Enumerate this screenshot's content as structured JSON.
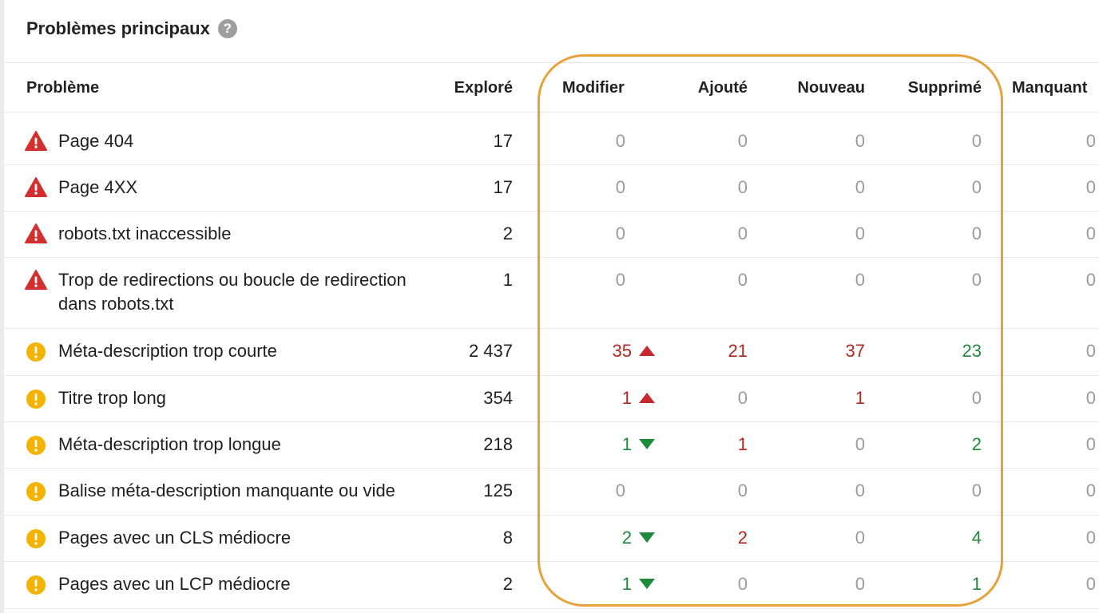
{
  "panel": {
    "title": "Problèmes principaux",
    "help_icon": "question-circle-icon"
  },
  "columns": {
    "probleme": "Problème",
    "explore": "Exploré",
    "modifier": "Modifier",
    "ajoute": "Ajouté",
    "nouveau": "Nouveau",
    "supprime": "Supprimé",
    "manquant": "Manquant"
  },
  "colors": {
    "error": "#d32f2f",
    "warning": "#f5b301",
    "increase": "#b3261e",
    "decrease": "#1e8a3a",
    "highlight": "#e8a23c"
  },
  "rows": [
    {
      "severity": "error",
      "icon": "warning-triangle-icon",
      "label": "Page 404",
      "explore": "17",
      "modifier": "0",
      "modifier_trend": "",
      "ajoute": "0",
      "nouveau": "0",
      "supprime": "0",
      "manquant": "0"
    },
    {
      "severity": "error",
      "icon": "warning-triangle-icon",
      "label": "Page 4XX",
      "explore": "17",
      "modifier": "0",
      "modifier_trend": "",
      "ajoute": "0",
      "nouveau": "0",
      "supprime": "0",
      "manquant": "0"
    },
    {
      "severity": "error",
      "icon": "warning-triangle-icon",
      "label": "robots.txt inaccessible",
      "explore": "2",
      "modifier": "0",
      "modifier_trend": "",
      "ajoute": "0",
      "nouveau": "0",
      "supprime": "0",
      "manquant": "0"
    },
    {
      "severity": "error",
      "icon": "warning-triangle-icon",
      "label": "Trop de redirections ou boucle de redirection",
      "label_line2": "dans robots.txt",
      "explore": "1",
      "modifier": "0",
      "modifier_trend": "",
      "ajoute": "0",
      "nouveau": "0",
      "supprime": "0",
      "manquant": "0"
    },
    {
      "severity": "warning",
      "icon": "info-circle-icon",
      "label": "Méta-description trop courte",
      "explore": "2 437",
      "modifier": "35",
      "modifier_trend": "up",
      "ajoute": "21",
      "nouveau": "37",
      "supprime": "23",
      "manquant": "0"
    },
    {
      "severity": "warning",
      "icon": "info-circle-icon",
      "label": "Titre trop long",
      "explore": "354",
      "modifier": "1",
      "modifier_trend": "up",
      "ajoute": "0",
      "nouveau": "1",
      "supprime": "0",
      "manquant": "0"
    },
    {
      "severity": "warning",
      "icon": "info-circle-icon",
      "label": "Méta-description trop longue",
      "explore": "218",
      "modifier": "1",
      "modifier_trend": "down",
      "ajoute": "1",
      "nouveau": "0",
      "supprime": "2",
      "manquant": "0"
    },
    {
      "severity": "warning",
      "icon": "info-circle-icon",
      "label": "Balise méta-description manquante ou vide",
      "explore": "125",
      "modifier": "0",
      "modifier_trend": "",
      "ajoute": "0",
      "nouveau": "0",
      "supprime": "0",
      "manquant": "0"
    },
    {
      "severity": "warning",
      "icon": "info-circle-icon",
      "label": "Pages avec un CLS médiocre",
      "explore": "8",
      "modifier": "2",
      "modifier_trend": "down",
      "ajoute": "2",
      "nouveau": "0",
      "supprime": "4",
      "manquant": "0"
    },
    {
      "severity": "warning",
      "icon": "info-circle-icon",
      "label": "Pages avec un LCP médiocre",
      "explore": "2",
      "modifier": "1",
      "modifier_trend": "down",
      "ajoute": "0",
      "nouveau": "0",
      "supprime": "1",
      "manquant": "0"
    }
  ]
}
